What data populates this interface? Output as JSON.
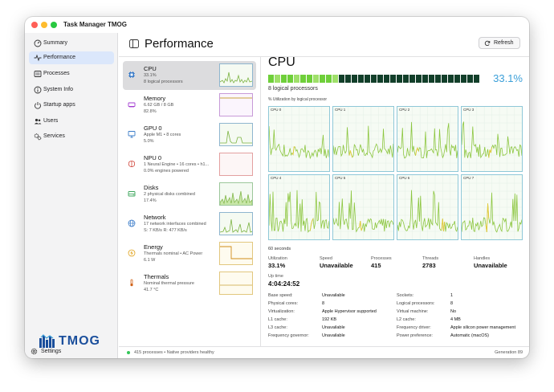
{
  "window": {
    "title": "Task Manager TMOG"
  },
  "sidebar": {
    "items": [
      {
        "label": "Summary",
        "icon": "gauge-icon"
      },
      {
        "label": "Performance",
        "icon": "activity-icon"
      },
      {
        "label": "Processes",
        "icon": "list-icon"
      },
      {
        "label": "System Info",
        "icon": "info-icon"
      },
      {
        "label": "Startup apps",
        "icon": "power-icon"
      },
      {
        "label": "Users",
        "icon": "users-icon"
      },
      {
        "label": "Services",
        "icon": "gears-icon"
      }
    ],
    "logo_text": "TMOG",
    "settings_label": "Settings"
  },
  "header": {
    "title": "Performance",
    "refresh_label": "Refresh"
  },
  "resources": [
    {
      "name": "CPU",
      "line1": "33.1%",
      "line2": "8 logical processors"
    },
    {
      "name": "Memory",
      "line1": "6.62 GB / 8 GB",
      "line2": "82.8%"
    },
    {
      "name": "GPU 0",
      "line1": "Apple M1 • 8 cores",
      "line2": "5.0%"
    },
    {
      "name": "NPU 0",
      "line1": "1 Neural Engine • 16 cores • h1...",
      "line2": "0.0% engines powered"
    },
    {
      "name": "Disks",
      "line1": "2 physical disks combined",
      "line2": "17.4%"
    },
    {
      "name": "Network",
      "line1": "17 network interfaces combined",
      "line2": "S: 7 KB/s  R: 477 KB/s"
    },
    {
      "name": "Energy",
      "line1": "Thermals nominal • AC Power",
      "line2": "6.1 W"
    },
    {
      "name": "Thermals",
      "line1": "Nominal thermal pressure",
      "line2": "41.7 °C"
    }
  ],
  "cpu": {
    "title": "CPU",
    "percent": "33.1%",
    "percent_value": 33.1,
    "logical_processors": "8 logical processors",
    "utilization_caption": "% Utilization by logical processor",
    "cores": [
      "CPU 0",
      "CPU 1",
      "CPU 2",
      "CPU 3",
      "CPU 4",
      "CPU 5",
      "CPU 6",
      "CPU 7"
    ],
    "seconds_label": "60 seconds",
    "stats": [
      {
        "label": "Utilization",
        "value": "33.1%"
      },
      {
        "label": "Speed",
        "value": "Unavailable"
      },
      {
        "label": "Processes",
        "value": "415"
      },
      {
        "label": "Threads",
        "value": "2783"
      },
      {
        "label": "Handles",
        "value": "Unavailable"
      }
    ],
    "uptime_label": "Up time",
    "uptime_value": "4:04:24:52",
    "details_left": [
      {
        "k": "Base speed:",
        "v": "Unavailable"
      },
      {
        "k": "Physical cores:",
        "v": "8"
      },
      {
        "k": "Virtualization:",
        "v": "Apple Hypervisor supported"
      },
      {
        "k": "L1 cache:",
        "v": "192 KB"
      },
      {
        "k": "L3 cache:",
        "v": "Unavailable"
      },
      {
        "k": "Frequency governor:",
        "v": "Unavailable"
      }
    ],
    "details_right": [
      {
        "k": "Sockets:",
        "v": "1"
      },
      {
        "k": "Logical processors:",
        "v": "8"
      },
      {
        "k": "Virtual machine:",
        "v": "No"
      },
      {
        "k": "L2 cache:",
        "v": "4 MB"
      },
      {
        "k": "Frequency driver:",
        "v": "Apple silicon power management"
      },
      {
        "k": "Power preference:",
        "v": "Automatic (macOS)"
      }
    ]
  },
  "status": {
    "text": "415 processes • Native providers healthy",
    "generation": "Generation 89"
  },
  "colors": {
    "accent": "#3b9fd8",
    "selection": "#dbe7fb",
    "graph_line": "#8cc63f",
    "graph_peak": "#e5c93a",
    "status_ok": "#34c759"
  }
}
